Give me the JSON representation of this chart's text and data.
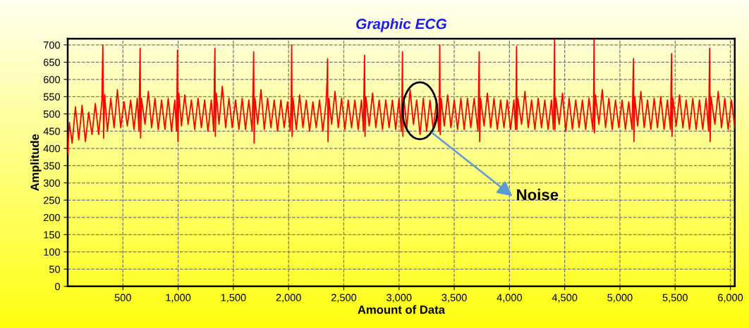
{
  "chart_data": {
    "type": "line",
    "title": "Graphic ECG",
    "xlabel": "Amount of Data",
    "ylabel": "Amplitude",
    "xlim": [
      0,
      6040
    ],
    "ylim": [
      0,
      718
    ],
    "xticks": [
      500,
      {
        "value": 1000,
        "label": "1,000"
      },
      {
        "value": 1500,
        "label": "1,500"
      },
      {
        "value": 2000,
        "label": "2,000"
      },
      {
        "value": 2500,
        "label": "2,500"
      },
      {
        "value": 3000,
        "label": "3,000"
      },
      {
        "value": 3500,
        "label": "3,500"
      },
      {
        "value": 4000,
        "label": "4,000"
      },
      {
        "value": 4500,
        "label": "4,500"
      },
      {
        "value": 5000,
        "label": "5,000"
      },
      {
        "value": 5500,
        "label": "5,500"
      },
      {
        "value": 6000,
        "label": "6,000"
      }
    ],
    "yticks": [
      0,
      50,
      100,
      150,
      200,
      250,
      300,
      350,
      400,
      450,
      500,
      550,
      600,
      650,
      700
    ],
    "grid": true,
    "legend": false,
    "marker": "none",
    "line_style": "solid",
    "annotations": [
      {
        "text": "Noise",
        "x": 3300,
        "y": 445
      }
    ],
    "series": [
      {
        "color": "#ff0000",
        "x": [
          0,
          15,
          40,
          70,
          100,
          130,
          160,
          190,
          220,
          250,
          280,
          310,
          318,
          325,
          335,
          360,
          390,
          420,
          450,
          480,
          510,
          540,
          570,
          600,
          630,
          645,
          652,
          656,
          660,
          668,
          700,
          730,
          760,
          790,
          820,
          850,
          880,
          910,
          940,
          970,
          985,
          990,
          994,
          998,
          1006,
          1030,
          1060,
          1090,
          1120,
          1150,
          1180,
          1210,
          1240,
          1270,
          1300,
          1322,
          1328,
          1333,
          1337,
          1345,
          1370,
          1400,
          1430,
          1460,
          1490,
          1520,
          1550,
          1580,
          1610,
          1640,
          1670,
          1680,
          1684,
          1688,
          1696,
          1720,
          1750,
          1780,
          1810,
          1840,
          1870,
          1900,
          1930,
          1960,
          1990,
          2015,
          2024,
          2028,
          2032,
          2040,
          2070,
          2100,
          2130,
          2160,
          2190,
          2220,
          2250,
          2280,
          2310,
          2340,
          2349,
          2353,
          2357,
          2365,
          2390,
          2420,
          2450,
          2480,
          2510,
          2540,
          2570,
          2600,
          2630,
          2660,
          2678,
          2684,
          2688,
          2692,
          2700,
          2730,
          2760,
          2790,
          2820,
          2850,
          2880,
          2910,
          2940,
          2970,
          3000,
          3020,
          3027,
          3031,
          3035,
          3043,
          3070,
          3100,
          3130,
          3160,
          3190,
          3220,
          3250,
          3280,
          3310,
          3340,
          3360,
          3365,
          3369,
          3373,
          3381,
          3410,
          3440,
          3470,
          3500,
          3530,
          3560,
          3590,
          3620,
          3650,
          3680,
          3715,
          3722,
          3726,
          3730,
          3738,
          3770,
          3800,
          3830,
          3860,
          3890,
          3920,
          3950,
          3980,
          4010,
          4040,
          4055,
          4060,
          4064,
          4068,
          4076,
          4110,
          4140,
          4170,
          4200,
          4230,
          4260,
          4290,
          4320,
          4350,
          4380,
          4398,
          4404,
          4408,
          4412,
          4420,
          4450,
          4480,
          4510,
          4540,
          4570,
          4600,
          4630,
          4660,
          4690,
          4720,
          4755,
          4762,
          4766,
          4770,
          4778,
          4810,
          4840,
          4870,
          4900,
          4930,
          4960,
          4990,
          5020,
          5050,
          5080,
          5110,
          5119,
          5123,
          5127,
          5135,
          5160,
          5190,
          5220,
          5250,
          5280,
          5310,
          5340,
          5370,
          5400,
          5430,
          5458,
          5464,
          5468,
          5472,
          5480,
          5510,
          5540,
          5570,
          5600,
          5630,
          5660,
          5690,
          5720,
          5750,
          5780,
          5803,
          5809,
          5813,
          5817,
          5825,
          5860,
          5890,
          5920,
          5950,
          5980,
          6010,
          6040
        ],
        "values": [
          385,
          475,
          415,
          520,
          425,
          525,
          420,
          505,
          440,
          530,
          440,
          540,
          700,
          430,
          555,
          450,
          545,
          460,
          570,
          460,
          535,
          465,
          540,
          455,
          545,
          450,
          615,
          690,
          430,
          545,
          470,
          565,
          460,
          545,
          455,
          540,
          455,
          545,
          450,
          540,
          450,
          570,
          685,
          420,
          560,
          465,
          555,
          470,
          540,
          455,
          545,
          460,
          540,
          450,
          540,
          450,
          600,
          690,
          435,
          560,
          470,
          580,
          460,
          545,
          460,
          540,
          455,
          545,
          455,
          540,
          450,
          600,
          680,
          415,
          545,
          470,
          570,
          455,
          545,
          460,
          540,
          450,
          540,
          460,
          535,
          450,
          550,
          700,
          435,
          545,
          455,
          555,
          460,
          540,
          450,
          535,
          460,
          540,
          450,
          535,
          600,
          660,
          420,
          545,
          470,
          565,
          460,
          545,
          455,
          540,
          460,
          540,
          455,
          540,
          450,
          600,
          670,
          435,
          550,
          465,
          560,
          460,
          540,
          455,
          540,
          460,
          540,
          455,
          545,
          450,
          560,
          680,
          435,
          550,
          460,
          570,
          470,
          540,
          440,
          545,
          450,
          540,
          455,
          540,
          450,
          560,
          700,
          440,
          545,
          465,
          555,
          460,
          540,
          455,
          545,
          455,
          545,
          460,
          545,
          450,
          600,
          680,
          420,
          545,
          465,
          560,
          460,
          545,
          455,
          540,
          460,
          540,
          455,
          540,
          455,
          560,
          695,
          455,
          545,
          470,
          565,
          460,
          540,
          455,
          545,
          460,
          540,
          455,
          540,
          455,
          580,
          715,
          455,
          545,
          470,
          560,
          450,
          545,
          455,
          540,
          460,
          540,
          455,
          545,
          455,
          550,
          715,
          445,
          555,
          470,
          570,
          460,
          545,
          455,
          540,
          460,
          540,
          455,
          535,
          455,
          600,
          660,
          420,
          550,
          465,
          565,
          460,
          540,
          455,
          545,
          460,
          550,
          455,
          540,
          455,
          600,
          675,
          435,
          545,
          465,
          555,
          460,
          540,
          455,
          545,
          455,
          540,
          455,
          545,
          450,
          600,
          690,
          420,
          550,
          470,
          565,
          460,
          545,
          455,
          540,
          460
        ]
      }
    ]
  }
}
